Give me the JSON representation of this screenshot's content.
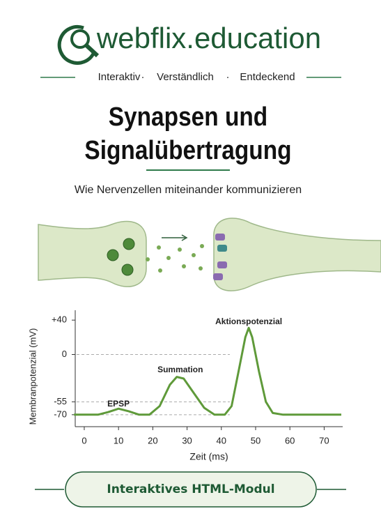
{
  "header": {
    "brand": "webflix.education",
    "tagline": [
      "Interaktiv",
      "Verständlich",
      "Entdeckend"
    ]
  },
  "title": [
    "Synapsen und",
    "Signalübertragung"
  ],
  "subtitle": "Wie Nervenzellen miteinander kommunizieren",
  "chart_data": {
    "type": "line",
    "ylabel": "Membranpotenzial (mV)",
    "xlabel": "Zeit (ms)",
    "xlim": [
      -3,
      75
    ],
    "xticks": [
      0,
      10,
      20,
      30,
      40,
      50,
      60,
      70
    ],
    "ylim": [
      -75,
      45
    ],
    "yticks": [
      {
        "value": 40,
        "label": "+40"
      },
      0,
      -55,
      -70
    ],
    "grid": true,
    "series": [
      {
        "color": "#5f9a3a",
        "x": [
          -3,
          0,
          4,
          7,
          10,
          13,
          16,
          19,
          22,
          25,
          27,
          29,
          32,
          35,
          38,
          41,
          43,
          45,
          47,
          48,
          49,
          51,
          53,
          55,
          58,
          65,
          75
        ],
        "values": [
          -70,
          -70,
          -70,
          -67,
          -63,
          -66,
          -70,
          -70,
          -60,
          -35,
          -26,
          -28,
          -45,
          -62,
          -70,
          -70,
          -60,
          -20,
          20,
          31,
          20,
          -20,
          -55,
          -68,
          -70,
          -70,
          -70
        ]
      }
    ],
    "annotations": [
      {
        "text": "EPSP",
        "x": 10,
        "y": -58
      },
      {
        "text": "Summation",
        "x": 28,
        "y": -18
      },
      {
        "text": "Aktionspotenzial",
        "x": 48,
        "y": 38
      }
    ]
  },
  "button": "Interaktives HTML-Modul"
}
